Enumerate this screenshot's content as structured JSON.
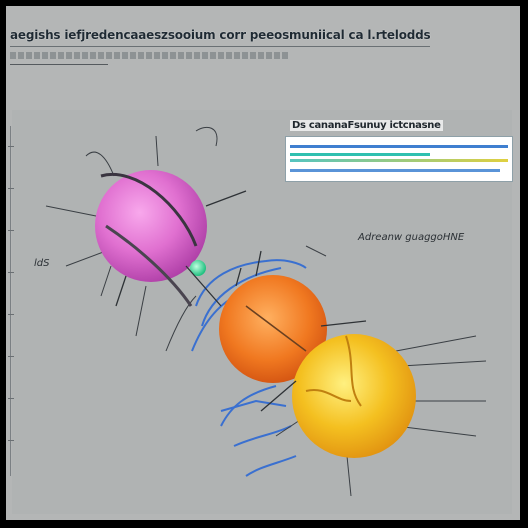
{
  "header": {
    "title": "aegishs iefjredencaaeszsooium corr peeosmuniical ca l.rtelodds"
  },
  "legend": {
    "title": "Ds cananaFsunuy ictcnasne",
    "colors": [
      "#3f7fd0",
      "#2fc0b0",
      "#e0d040",
      "#55c4c0",
      "#5a94d8"
    ]
  },
  "annotations": {
    "right_label": "Adreanw guaggoHNE",
    "left_label": "ldS"
  },
  "colors": {
    "background": "#b4b6b6",
    "sphere_pink": "#e070d0",
    "sphere_orange": "#f07820",
    "sphere_yellow": "#f4c020",
    "accent_green": "#40e0a0",
    "accent_blue": "#3a70d0"
  }
}
